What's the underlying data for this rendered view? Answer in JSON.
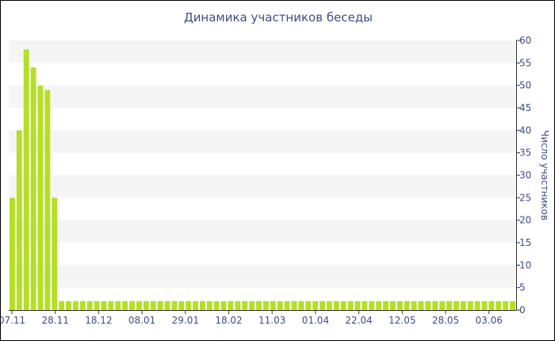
{
  "chart_data": {
    "type": "bar",
    "title": "Динамика участников беседы",
    "xlabel": "",
    "ylabel": "Число участников",
    "ylim": [
      0,
      60
    ],
    "y_ticks": [
      0,
      5,
      10,
      15,
      20,
      25,
      30,
      35,
      40,
      45,
      50,
      55,
      60
    ],
    "x_tick_labels": [
      "07.11",
      "28.11",
      "18.12",
      "08.01",
      "29.01",
      "18.02",
      "11.03",
      "01.04",
      "22.04",
      "12.05",
      "28.05",
      "03.06"
    ],
    "y_axis_position": "right",
    "grid": "alternating horizontal bands",
    "colors": {
      "bar": "#b5df26",
      "band": "#f5f5f5",
      "text": "#3e4e86",
      "axis": "#333333"
    },
    "values": [
      25,
      40,
      58,
      54,
      50,
      49,
      25,
      2,
      2,
      2,
      2,
      2,
      2,
      2,
      2,
      2,
      2,
      2,
      2,
      2,
      2,
      2,
      2,
      2,
      2,
      2,
      2,
      2,
      2,
      2,
      2,
      2,
      2,
      2,
      2,
      2,
      2,
      2,
      2,
      2,
      2,
      2,
      2,
      2,
      2,
      2,
      2,
      2,
      2,
      2,
      2,
      2,
      2,
      2,
      2,
      2,
      2,
      2,
      2,
      2,
      2,
      2,
      2,
      2,
      2,
      2,
      2,
      2,
      2,
      2,
      2,
      2
    ]
  }
}
